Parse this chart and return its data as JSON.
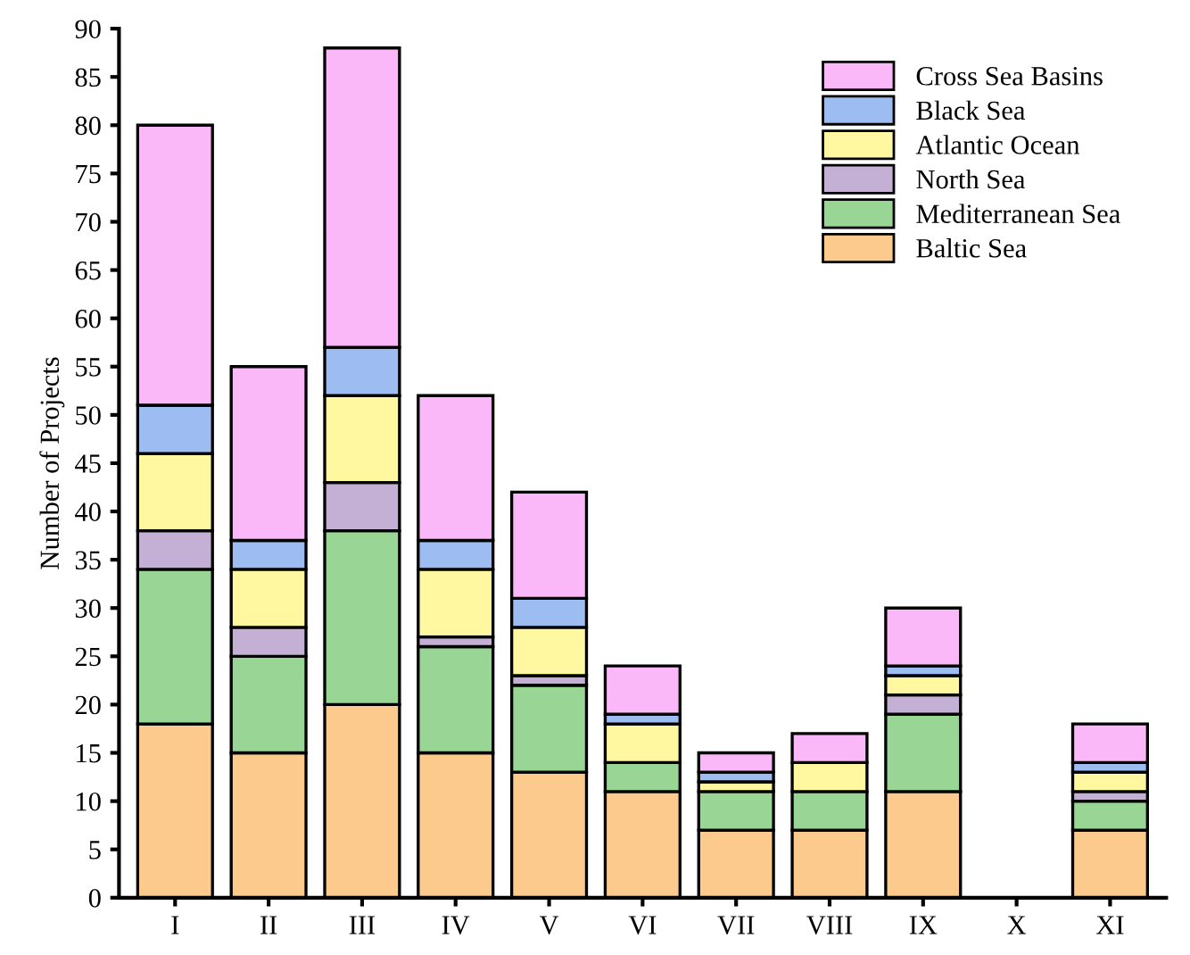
{
  "chart_data": {
    "type": "bar",
    "stacked": true,
    "ylabel": "Number of Projects",
    "categories": [
      "I",
      "II",
      "III",
      "IV",
      "V",
      "VI",
      "VII",
      "VIII",
      "IX",
      "X",
      "XI"
    ],
    "series": [
      {
        "name": "Baltic Sea",
        "color": "#fdca8e",
        "values": [
          18,
          15,
          20,
          15,
          13,
          11,
          7,
          7,
          11,
          0,
          7
        ]
      },
      {
        "name": "Mediterranean Sea",
        "color": "#99d594",
        "values": [
          16,
          10,
          18,
          11,
          9,
          3,
          4,
          4,
          8,
          0,
          3
        ]
      },
      {
        "name": "North Sea",
        "color": "#c5b0d5",
        "values": [
          4,
          3,
          5,
          1,
          1,
          0,
          0,
          0,
          2,
          0,
          1
        ]
      },
      {
        "name": "Atlantic Ocean",
        "color": "#fff8a0",
        "values": [
          8,
          6,
          9,
          7,
          5,
          4,
          1,
          3,
          2,
          0,
          2
        ]
      },
      {
        "name": "Black Sea",
        "color": "#9dbcf2",
        "values": [
          5,
          3,
          5,
          3,
          3,
          1,
          1,
          0,
          1,
          0,
          1
        ]
      },
      {
        "name": "Cross Sea Basins",
        "color": "#fbb8f8",
        "values": [
          29,
          18,
          31,
          15,
          11,
          5,
          2,
          3,
          6,
          0,
          4
        ]
      }
    ],
    "ylim": [
      0,
      90
    ],
    "yticks": [
      0,
      5,
      10,
      15,
      20,
      25,
      30,
      35,
      40,
      45,
      50,
      55,
      60,
      65,
      70,
      75,
      80,
      85,
      90
    ],
    "grid": false,
    "legend": "top right"
  }
}
